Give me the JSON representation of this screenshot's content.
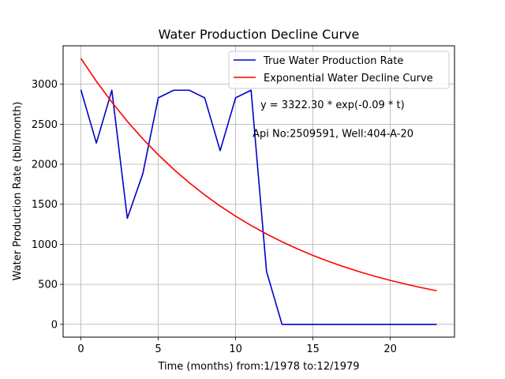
{
  "chart_data": {
    "type": "line",
    "title": "Water Production Decline Curve",
    "xlabel": "Time (months) from:1/1978 to:12/1979",
    "ylabel": "Water Production Rate (bbl/month)",
    "xlim": [
      -1.15,
      24.15
    ],
    "ylim": [
      -160,
      3480
    ],
    "xticks": [
      0,
      5,
      10,
      15,
      20
    ],
    "yticks": [
      0,
      500,
      1000,
      1500,
      2000,
      2500,
      3000
    ],
    "grid": true,
    "legend_position": "upper-right",
    "series": [
      {
        "name": "True Water Production Rate",
        "color": "#0000cc",
        "x": [
          0,
          1,
          2,
          3,
          4,
          5,
          6,
          7,
          8,
          9,
          10,
          11,
          12,
          13,
          14,
          15,
          16,
          17,
          18,
          19,
          20,
          21,
          22,
          23
        ],
        "y": [
          2930,
          2265,
          2925,
          1325,
          1880,
          2830,
          2925,
          2925,
          2830,
          2170,
          2830,
          2925,
          660,
          0,
          0,
          0,
          0,
          0,
          0,
          0,
          0,
          0,
          0,
          0
        ]
      },
      {
        "name": "Exponential Water Decline Curve",
        "color": "#ff0000",
        "x": [
          0,
          1,
          2,
          3,
          4,
          5,
          6,
          7,
          8,
          9,
          10,
          11,
          12,
          13,
          14,
          15,
          16,
          17,
          18,
          19,
          20,
          21,
          22,
          23
        ],
        "y": [
          3322.3,
          3036.4,
          2775.2,
          2536.4,
          2318.1,
          2118.6,
          1936.3,
          1769.7,
          1617.4,
          1478.2,
          1351.0,
          1234.8,
          1128.5,
          1031.4,
          942.7,
          861.5,
          787.4,
          719.7,
          657.7,
          601.1,
          549.4,
          502.1,
          458.9,
          419.4
        ]
      }
    ],
    "annotations": [
      {
        "text": "y = 3322.30 * exp(-0.09 * t)",
        "x": 11.6,
        "y": 2700
      },
      {
        "text": "Api No:2509591, Well:404-A-20",
        "x": 11.1,
        "y": 2340
      }
    ]
  }
}
